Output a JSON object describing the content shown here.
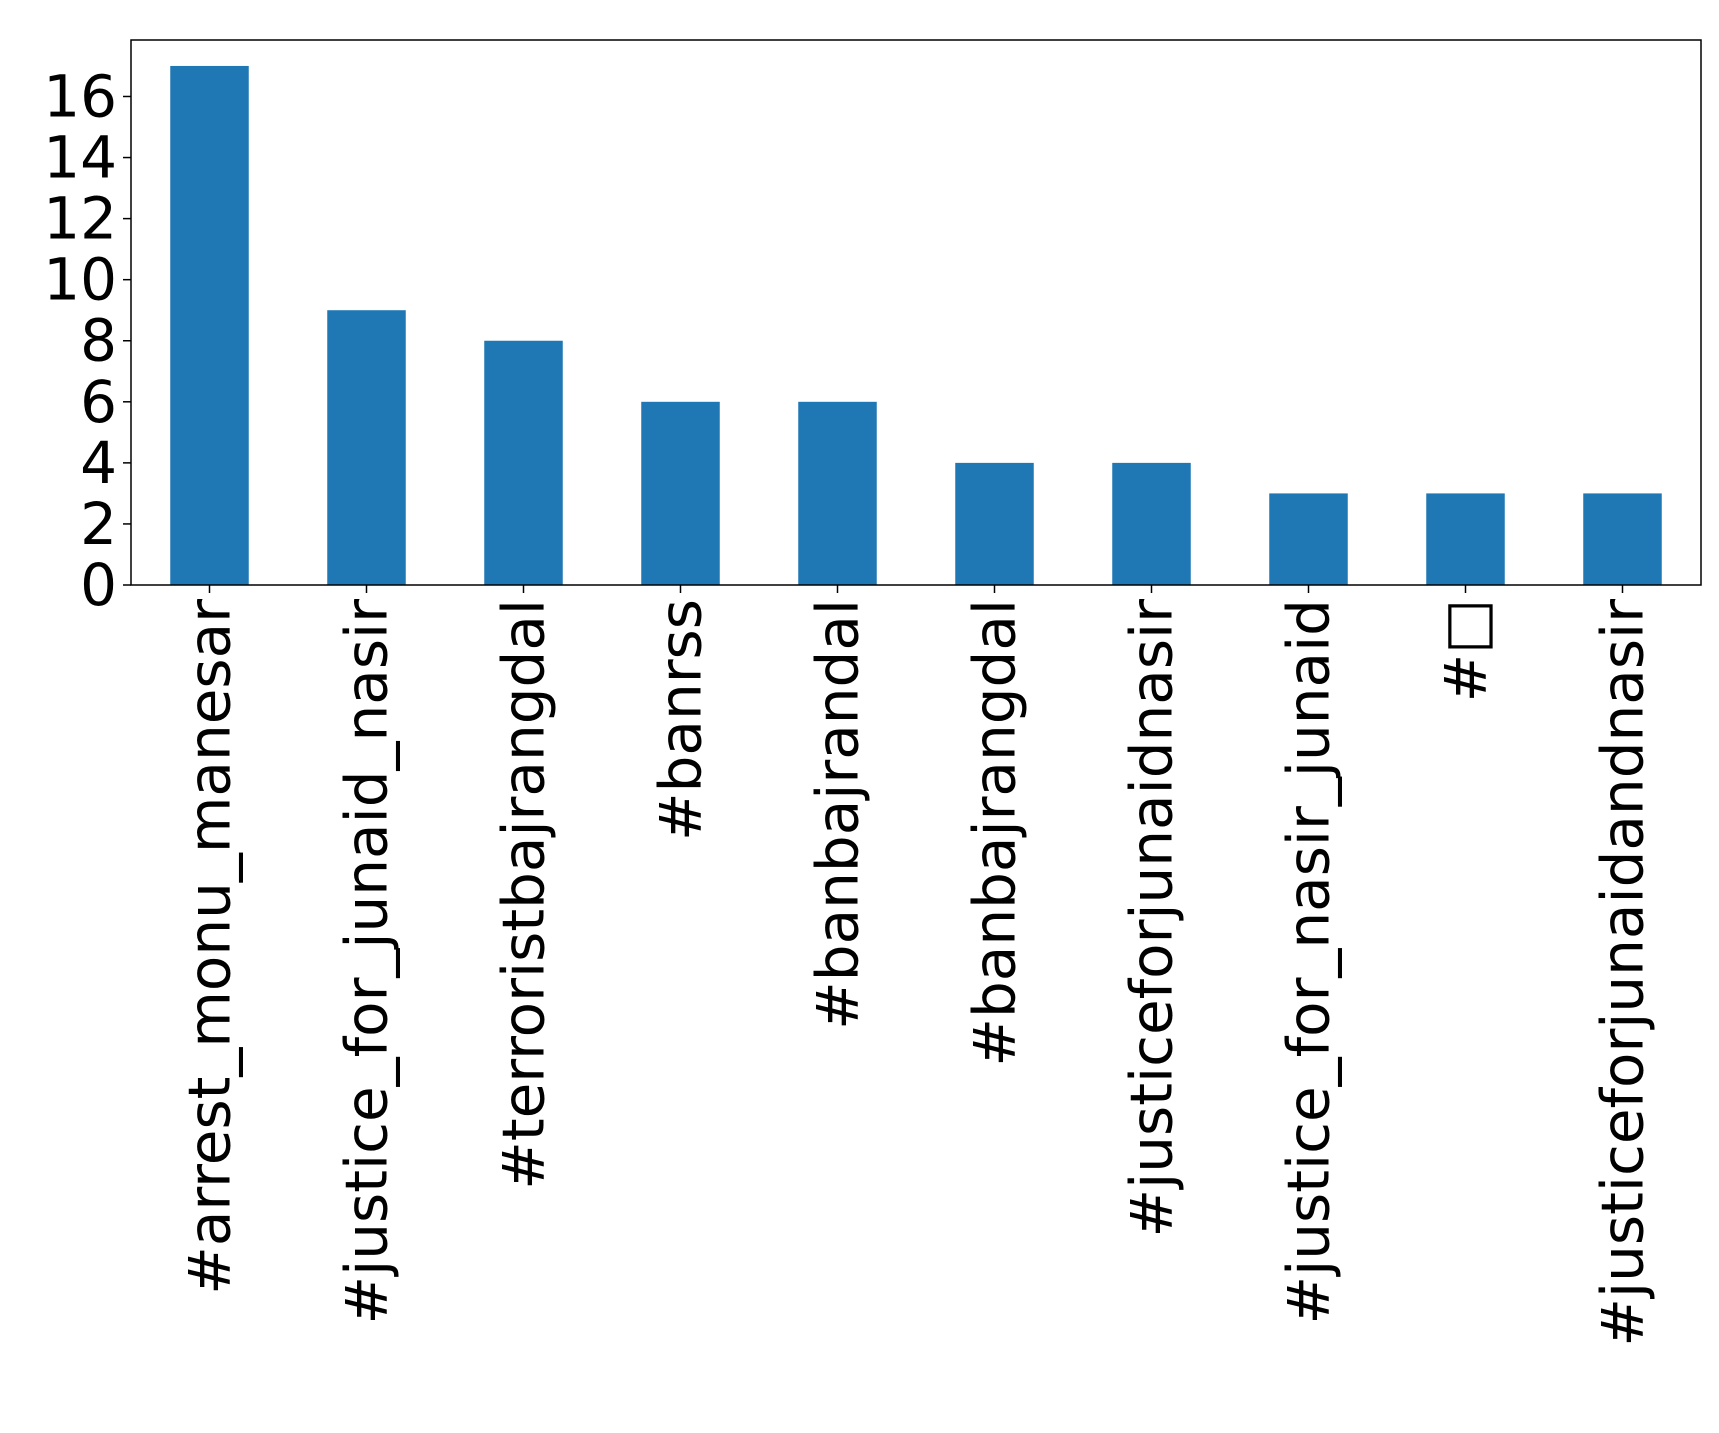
{
  "chart_data": {
    "type": "bar",
    "title": "",
    "xlabel": "",
    "ylabel": "",
    "categories": [
      "#arrest_monu_manesar",
      "#justice_for_junaid_nasir",
      "#terroristbajrangdal",
      "#banrss",
      "#banbajrandal",
      "#banbajrangdal",
      "#justiceforjunaidnasir",
      "#justice_for_nasir_junaid",
      "#□",
      "#justiceforjunaidandnasir"
    ],
    "values": [
      17,
      9,
      8,
      6,
      6,
      4,
      4,
      3,
      3,
      3
    ],
    "ylim": [
      0,
      17.85
    ],
    "yticks": [
      0,
      2,
      4,
      6,
      8,
      10,
      12,
      14,
      16
    ],
    "grid": false,
    "legend": "none",
    "bar_color": "#1f77b4"
  }
}
